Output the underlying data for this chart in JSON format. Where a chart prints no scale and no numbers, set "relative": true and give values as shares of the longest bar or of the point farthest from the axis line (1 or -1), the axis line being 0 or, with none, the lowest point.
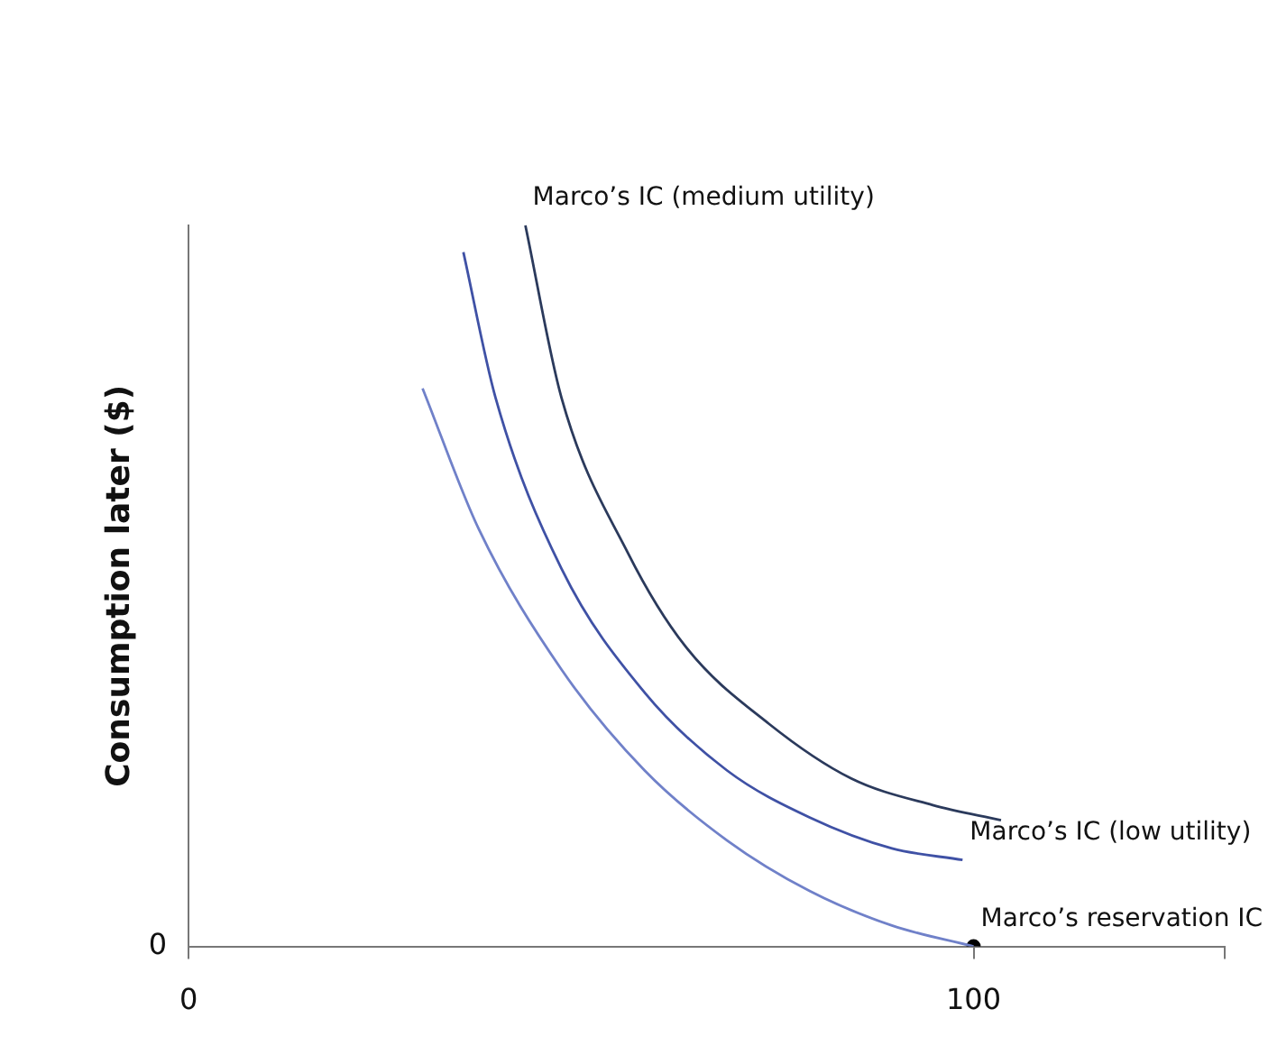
{
  "chart_data": {
    "type": "line",
    "ylabel": "Consumption later ($)",
    "relative": true,
    "xlim": [
      0,
      132
    ],
    "xticks": [
      0,
      100,
      {
        "value": 132,
        "label": null
      }
    ],
    "series": [
      {
        "color": "#7081c9",
        "x": [
          29.8,
          37,
          47.5,
          58.1,
          68.6,
          79.1,
          89.6,
          100
        ],
        "values": [
          0.774,
          0.578,
          0.384,
          0.244,
          0.147,
          0.077,
          0.029,
          0
        ]
      },
      {
        "color": "#3f51a5",
        "x": [
          35,
          39.1,
          47.5,
          58.1,
          68.6,
          79.1,
          89.6,
          98.6
        ],
        "values": [
          0.963,
          0.761,
          0.524,
          0.352,
          0.244,
          0.179,
          0.136,
          0.12
        ]
      },
      {
        "color": "#2b3a5c",
        "x": [
          42.9,
          47.5,
          56,
          63.3,
          73.9,
          84.4,
          94.8,
          103.5
        ],
        "values": [
          1,
          0.761,
          0.545,
          0.416,
          0.309,
          0.233,
          0.196,
          0.175
        ]
      },
      {
        "type": "scatter",
        "color": "#000000",
        "x": [
          100
        ],
        "values": [
          0
        ]
      }
    ],
    "annotations": [
      {
        "text": "Marco’s IC (medium utility)",
        "x": 42.9,
        "y": 1
      },
      {
        "text": "Marco’s IC (low utility)",
        "x": 98.6,
        "y": 0.12
      },
      {
        "text": "Marco’s reservation IC",
        "x": 100,
        "y": 0
      },
      "0"
    ]
  }
}
